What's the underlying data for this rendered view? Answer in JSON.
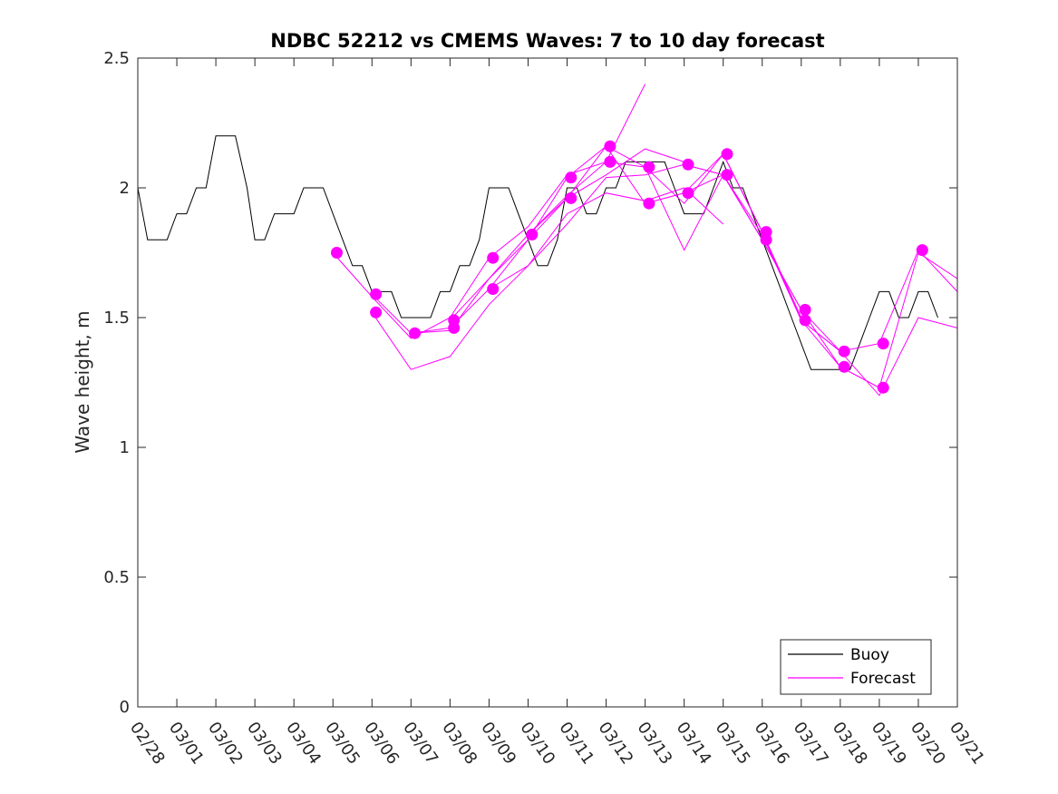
{
  "chart_data": {
    "type": "line",
    "title": "NDBC 52212 vs CMEMS Waves: 7 to 10 day forecast",
    "xlabel": "",
    "ylabel": "Wave height, m",
    "ylim": [
      0,
      2.5
    ],
    "xlim_days": [
      0,
      21
    ],
    "y_ticks": [
      0,
      0.5,
      1,
      1.5,
      2,
      2.5
    ],
    "y_tick_labels": [
      "0",
      "0.5",
      "1",
      "1.5",
      "2",
      "2.5"
    ],
    "x_ticks": [
      0,
      1,
      2,
      3,
      4,
      5,
      6,
      7,
      8,
      9,
      10,
      11,
      12,
      13,
      14,
      15,
      16,
      17,
      18,
      19,
      20,
      21
    ],
    "x_tick_labels": [
      "02/28",
      "03/01",
      "03/02",
      "03/03",
      "03/04",
      "03/05",
      "03/06",
      "03/07",
      "03/08",
      "03/09",
      "03/10",
      "03/11",
      "03/12",
      "03/13",
      "03/14",
      "03/15",
      "03/16",
      "03/17",
      "03/18",
      "03/19",
      "03/20",
      "03/21"
    ],
    "legend": {
      "position": "bottom-right",
      "entries": [
        "Buoy",
        "Forecast"
      ]
    },
    "colors": {
      "buoy": "#000000",
      "forecast": "#ff00ff",
      "axis": "#262626"
    },
    "buoy": {
      "name": "Buoy",
      "x": [
        0,
        0.25,
        0.5,
        0.75,
        1,
        1.25,
        1.5,
        1.75,
        2,
        2.25,
        2.5,
        2.65,
        2.8,
        3,
        3.25,
        3.5,
        3.75,
        4,
        4.25,
        4.5,
        4.75,
        5,
        5.25,
        5.5,
        5.75,
        6,
        6.25,
        6.5,
        6.75,
        7,
        7.25,
        7.5,
        7.75,
        8,
        8.25,
        8.5,
        8.75,
        9,
        9.25,
        9.5,
        9.75,
        10,
        10.25,
        10.5,
        10.75,
        11,
        11.25,
        11.5,
        11.75,
        12,
        12.25,
        12.5,
        12.75,
        13,
        13.25,
        13.5,
        13.75,
        14,
        14.25,
        14.5,
        14.75,
        15,
        15.25,
        15.5,
        15.75,
        16,
        16.25,
        16.5,
        16.75,
        17,
        17.25,
        17.5,
        17.75,
        18,
        18.25,
        18.5,
        18.75,
        19,
        19.25,
        19.5,
        19.75,
        20,
        20.25,
        20.5
      ],
      "y": [
        2.0,
        1.8,
        1.8,
        1.8,
        1.9,
        1.9,
        2.0,
        2.0,
        2.2,
        2.2,
        2.2,
        2.1,
        2.0,
        1.8,
        1.8,
        1.9,
        1.9,
        1.9,
        2.0,
        2.0,
        2.0,
        1.9,
        1.8,
        1.7,
        1.7,
        1.6,
        1.6,
        1.6,
        1.5,
        1.5,
        1.5,
        1.5,
        1.6,
        1.6,
        1.7,
        1.7,
        1.8,
        2.0,
        2.0,
        2.0,
        1.9,
        1.8,
        1.7,
        1.7,
        1.8,
        2.0,
        2.0,
        1.9,
        1.9,
        2.0,
        2.0,
        2.1,
        2.1,
        2.1,
        2.1,
        2.1,
        2.0,
        1.9,
        1.9,
        1.9,
        2.0,
        2.1,
        2.0,
        2.0,
        1.9,
        1.8,
        1.7,
        1.6,
        1.5,
        1.4,
        1.3,
        1.3,
        1.3,
        1.3,
        1.3,
        1.4,
        1.5,
        1.6,
        1.6,
        1.5,
        1.5,
        1.6,
        1.6,
        1.5
      ]
    },
    "forecast_series": [
      {
        "name": "Forecast 1",
        "x": [
          5,
          6,
          7,
          8,
          9,
          10,
          11,
          12,
          13
        ],
        "y": [
          1.75,
          1.58,
          1.42,
          1.5,
          1.73,
          1.85,
          2.05,
          2.1,
          2.4
        ]
      },
      {
        "name": "Forecast 2",
        "x": [
          6,
          7,
          8,
          9,
          10,
          11,
          12,
          13,
          14
        ],
        "y": [
          1.59,
          1.44,
          1.46,
          1.61,
          1.8,
          1.96,
          2.05,
          2.15,
          2.1
        ]
      },
      {
        "name": "Forecast 3",
        "x": [
          6,
          7,
          8,
          9,
          10,
          11,
          12,
          13,
          14,
          15
        ],
        "y": [
          1.52,
          1.3,
          1.35,
          1.55,
          1.7,
          1.9,
          1.98,
          1.95,
          2.0,
          1.86
        ]
      },
      {
        "name": "Forecast 4",
        "x": [
          7,
          8,
          9,
          10,
          11,
          12,
          13,
          14,
          15,
          16
        ],
        "y": [
          1.44,
          1.45,
          1.65,
          1.8,
          2.04,
          2.16,
          1.94,
          1.98,
          2.05,
          1.8
        ]
      },
      {
        "name": "Forecast 5",
        "x": [
          8,
          9,
          10,
          11,
          12,
          13,
          14,
          15,
          16,
          17
        ],
        "y": [
          1.49,
          1.65,
          1.82,
          1.97,
          2.1,
          2.08,
          1.94,
          2.13,
          1.83,
          1.5
        ]
      },
      {
        "name": "Forecast 6",
        "x": [
          9,
          10,
          11,
          12,
          13,
          14,
          15,
          16,
          17,
          18
        ],
        "y": [
          1.61,
          1.7,
          1.86,
          2.04,
          2.05,
          2.09,
          2.05,
          1.8,
          1.53,
          1.37
        ]
      },
      {
        "name": "Forecast 7",
        "x": [
          10,
          11,
          12,
          13,
          14,
          15,
          16,
          17,
          18,
          19
        ],
        "y": [
          1.82,
          1.96,
          2.16,
          2.08,
          1.76,
          2.05,
          1.82,
          1.49,
          1.31,
          1.23
        ]
      },
      {
        "name": "Forecast 8",
        "x": [
          13,
          14,
          15,
          16,
          17,
          18,
          19,
          20,
          21
        ],
        "y": [
          1.94,
          1.98,
          2.13,
          1.83,
          1.49,
          1.37,
          1.4,
          1.76,
          1.6
        ]
      },
      {
        "name": "Forecast 9",
        "x": [
          14,
          15,
          16,
          17,
          18,
          19,
          20,
          21
        ],
        "y": [
          2.09,
          2.05,
          1.8,
          1.53,
          1.31,
          1.23,
          1.75,
          1.65
        ]
      },
      {
        "name": "Forecast 10",
        "x": [
          15,
          16,
          17,
          18,
          19,
          20,
          21
        ],
        "y": [
          2.13,
          1.83,
          1.49,
          1.37,
          1.2,
          1.5,
          1.46
        ]
      }
    ],
    "forecast_markers": {
      "x": [
        5.1,
        6.1,
        6.1,
        7.1,
        8.1,
        8.1,
        9.1,
        9.1,
        10.1,
        11.1,
        11.1,
        12.1,
        12.1,
        13.1,
        13.1,
        14.1,
        14.1,
        15.1,
        15.1,
        16.1,
        16.1,
        17.1,
        17.1,
        18.1,
        18.1,
        19.1,
        19.1,
        20.1
      ],
      "y": [
        1.75,
        1.59,
        1.52,
        1.44,
        1.49,
        1.46,
        1.73,
        1.61,
        1.82,
        2.04,
        1.96,
        2.16,
        2.1,
        2.08,
        1.94,
        2.09,
        1.98,
        2.13,
        2.05,
        1.83,
        1.8,
        1.53,
        1.49,
        1.37,
        1.31,
        1.4,
        1.23,
        1.76
      ]
    }
  }
}
